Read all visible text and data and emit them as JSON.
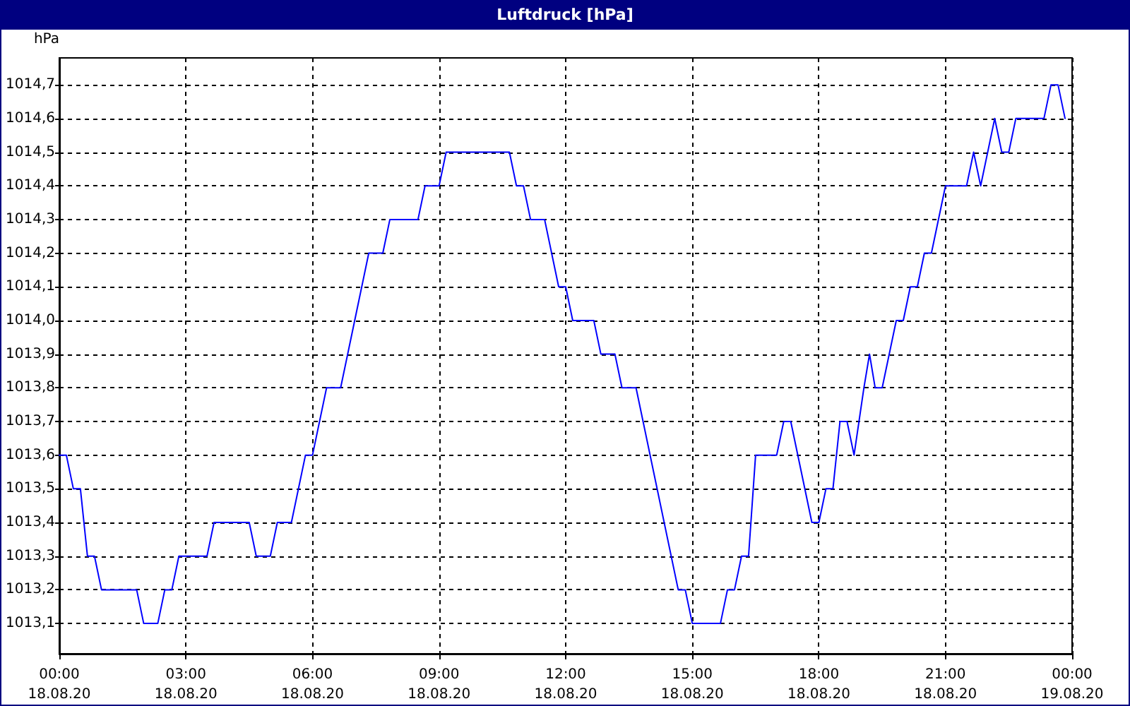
{
  "chart_data": {
    "type": "line",
    "title": "Luftdruck [hPa]",
    "ylabel": "hPa",
    "x": [
      "--08-18T00:00",
      "--08-18T00:10",
      "--08-18T00:20",
      "--08-18T00:30",
      "--08-18T00:40",
      "--08-18T00:50",
      "--08-18T01:00",
      "--08-18T01:50",
      "--08-18T02:00",
      "--08-18T02:20",
      "--08-18T02:30",
      "--08-18T02:40",
      "--08-18T02:50",
      "--08-18T03:30",
      "--08-18T03:40",
      "--08-18T04:30",
      "--08-18T04:40",
      "--08-18T05:00",
      "--08-18T05:10",
      "--08-18T05:30",
      "--08-18T05:50",
      "--08-18T06:00",
      "--08-18T06:20",
      "--08-18T06:40",
      "--08-18T07:20",
      "--08-18T07:40",
      "--08-18T07:50",
      "--08-18T08:30",
      "--08-18T08:40",
      "--08-18T09:00",
      "--08-18T09:10",
      "--08-18T10:40",
      "--08-18T10:50",
      "--08-18T11:00",
      "--08-18T11:10",
      "--08-18T11:30",
      "--08-18T11:50",
      "--08-18T12:00",
      "--08-18T12:10",
      "--08-18T12:40",
      "--08-18T12:50",
      "--08-18T13:10",
      "--08-18T13:20",
      "--08-18T13:40",
      "--08-18T14:40",
      "--08-18T14:50",
      "--08-18T15:00",
      "--08-18T15:40",
      "--08-18T15:50",
      "--08-18T16:00",
      "--08-18T16:10",
      "--08-18T16:20",
      "--08-18T16:30",
      "--08-18T17:00",
      "--08-18T17:10",
      "--08-18T17:20",
      "--08-18T17:50",
      "--08-18T18:00",
      "--08-18T18:10",
      "--08-18T18:20",
      "--08-18T18:30",
      "--08-18T18:40",
      "--08-18T18:50",
      "--08-18T19:04",
      "--08-18T19:12",
      "--08-18T19:20",
      "--08-18T19:30",
      "--08-18T19:50",
      "--08-18T20:00",
      "--08-18T20:10",
      "--08-18T20:20",
      "--08-18T20:30",
      "--08-18T20:40",
      "--08-18T21:00",
      "--08-18T21:30",
      "--08-18T21:40",
      "--08-18T21:50",
      "--08-18T22:10",
      "--08-18T22:20",
      "--08-18T22:30",
      "--08-18T22:40",
      "--08-18T23:20",
      "--08-18T23:30",
      "--08-18T23:40",
      "--08-18T23:50"
    ],
    "series": [
      {
        "color": "#0000ff",
        "values": [
          1013.6,
          1013.6,
          1013.5,
          1013.5,
          1013.3,
          1013.3,
          1013.2,
          1013.2,
          1013.1,
          1013.1,
          1013.2,
          1013.2,
          1013.3,
          1013.3,
          1013.4,
          1013.4,
          1013.3,
          1013.3,
          1013.4,
          1013.4,
          1013.6,
          1013.6,
          1013.8,
          1013.8,
          1014.2,
          1014.2,
          1014.3,
          1014.3,
          1014.4,
          1014.4,
          1014.5,
          1014.5,
          1014.4,
          1014.4,
          1014.3,
          1014.3,
          1014.1,
          1014.1,
          1014.0,
          1014.0,
          1013.9,
          1013.9,
          1013.8,
          1013.8,
          1013.2,
          1013.2,
          1013.1,
          1013.1,
          1013.2,
          1013.2,
          1013.3,
          1013.3,
          1013.6,
          1013.6,
          1013.7,
          1013.7,
          1013.4,
          1013.4,
          1013.5,
          1013.5,
          1013.7,
          1013.7,
          1013.6,
          1013.8,
          1013.9,
          1013.8,
          1013.8,
          1014.0,
          1014.0,
          1014.1,
          1014.1,
          1014.2,
          1014.2,
          1014.4,
          1014.4,
          1014.5,
          1014.4,
          1014.6,
          1014.5,
          1014.5,
          1014.6,
          1014.6,
          1014.7,
          1014.7,
          1014.6
        ]
      }
    ],
    "xlim": [
      "--08-18T00:00",
      "--08-19T00:00"
    ],
    "xticks": [
      {
        "value": "--08-18T00:00",
        "label": "00:00\n18.08.20"
      },
      {
        "value": "--08-18T03:00",
        "label": "03:00\n18.08.20"
      },
      {
        "value": "--08-18T06:00",
        "label": "06:00\n18.08.20"
      },
      {
        "value": "--08-18T09:00",
        "label": "09:00\n18.08.20"
      },
      {
        "value": "--08-18T12:00",
        "label": "12:00\n18.08.20"
      },
      {
        "value": "--08-18T15:00",
        "label": "15:00\n18.08.20"
      },
      {
        "value": "--08-18T18:00",
        "label": "18:00\n18.08.20"
      },
      {
        "value": "--08-18T21:00",
        "label": "21:00\n18.08.20"
      },
      {
        "value": "--08-19T00:00",
        "label": "00:00\n19.08.20"
      }
    ],
    "ylim": [
      1013.01,
      1014.78
    ],
    "yticks": [
      {
        "value": 1013.1,
        "label": "1013,1"
      },
      {
        "value": 1013.2,
        "label": "1013,2"
      },
      {
        "value": 1013.3,
        "label": "1013,3"
      },
      {
        "value": 1013.4,
        "label": "1013,4"
      },
      {
        "value": 1013.5,
        "label": "1013,5"
      },
      {
        "value": 1013.6,
        "label": "1013,6"
      },
      {
        "value": 1013.7,
        "label": "1013,7"
      },
      {
        "value": 1013.8,
        "label": "1013,8"
      },
      {
        "value": 1013.9,
        "label": "1013,9"
      },
      {
        "value": 1014.0,
        "label": "1014,0"
      },
      {
        "value": 1014.1,
        "label": "1014,1"
      },
      {
        "value": 1014.2,
        "label": "1014,2"
      },
      {
        "value": 1014.3,
        "label": "1014,3"
      },
      {
        "value": 1014.4,
        "label": "1014,4"
      },
      {
        "value": 1014.5,
        "label": "1014,5"
      },
      {
        "value": 1014.6,
        "label": "1014,6"
      },
      {
        "value": 1014.7,
        "label": "1014,7"
      }
    ],
    "grid": true,
    "marker": "none",
    "line_style": "solid"
  }
}
